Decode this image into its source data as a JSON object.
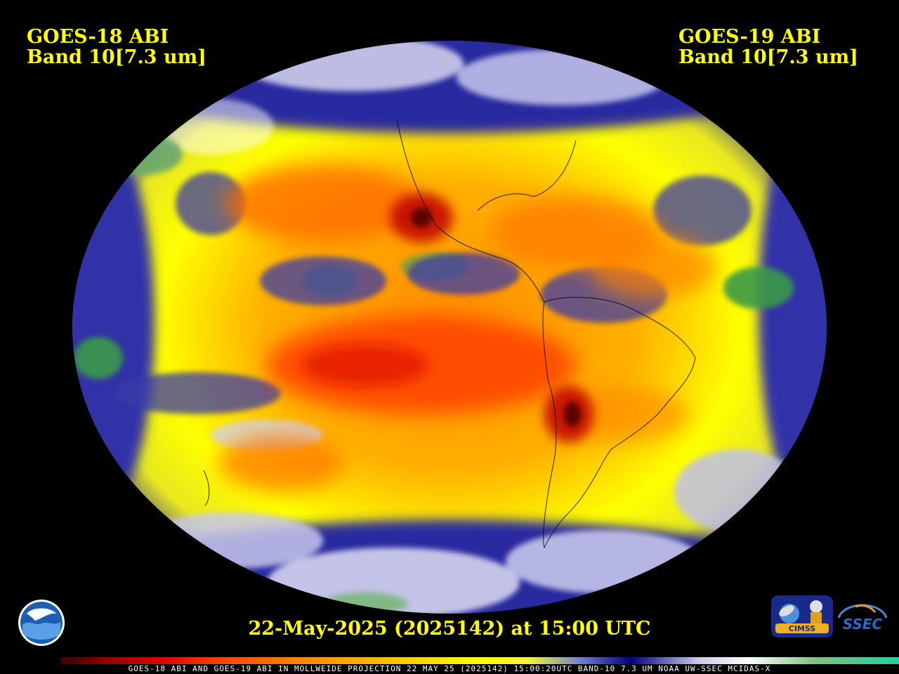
{
  "left_label": {
    "line1": "GOES-18 ABI",
    "line2": "Band 10[7.3 um]"
  },
  "right_label": {
    "line1": "GOES-19 ABI",
    "line2": "Band 10[7.3 um]"
  },
  "timestamp": "22-May-2025 (2025142) at 15:00 UTC",
  "footer_line": "GOES-18 ABI AND GOES-19 ABI IN MOLLWEIDE PROJECTION 22 MAY 25 (2025142) 15:00:20UTC BAND-10 7.3 UM NOAA UW-SSEC MCIDAS-X",
  "logos": {
    "noaa": "NOAA",
    "cimss": "CIMSS",
    "ssec": "SSEC"
  },
  "colors": {
    "background": "#000000",
    "text": "#FFFF00",
    "dry_red": "#ff3000",
    "dry_orange": "#ff9000",
    "mid_yellow": "#ffff00",
    "moist_blue": "#1a1a8a",
    "moist_white": "#ffffff",
    "moist_green": "#3a9a4a"
  }
}
